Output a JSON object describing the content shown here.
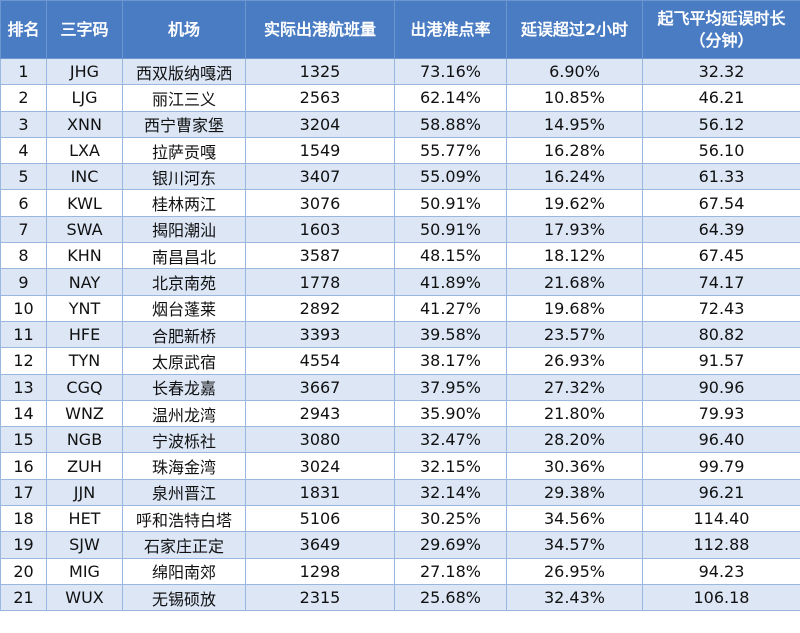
{
  "table": {
    "headers": {
      "rank": "排名",
      "code": "三字码",
      "airport": "机场",
      "flights": "实际出港航班量",
      "ontime": "出港准点率",
      "delay2h": "延误超过2小时",
      "avgdelay_line1": "起飞平均延误时长",
      "avgdelay_line2": "（分钟）"
    },
    "rows": [
      {
        "rank": "1",
        "code": "JHG",
        "airport": "西双版纳嘎洒",
        "flights": "1325",
        "ontime": "73.16%",
        "delay2h": "6.90%",
        "avgdelay": "32.32"
      },
      {
        "rank": "2",
        "code": "LJG",
        "airport": "丽江三义",
        "flights": "2563",
        "ontime": "62.14%",
        "delay2h": "10.85%",
        "avgdelay": "46.21"
      },
      {
        "rank": "3",
        "code": "XNN",
        "airport": "西宁曹家堡",
        "flights": "3204",
        "ontime": "58.88%",
        "delay2h": "14.95%",
        "avgdelay": "56.12"
      },
      {
        "rank": "4",
        "code": "LXA",
        "airport": "拉萨贡嘎",
        "flights": "1549",
        "ontime": "55.77%",
        "delay2h": "16.28%",
        "avgdelay": "56.10"
      },
      {
        "rank": "5",
        "code": "INC",
        "airport": "银川河东",
        "flights": "3407",
        "ontime": "55.09%",
        "delay2h": "16.24%",
        "avgdelay": "61.33"
      },
      {
        "rank": "6",
        "code": "KWL",
        "airport": "桂林两江",
        "flights": "3076",
        "ontime": "50.91%",
        "delay2h": "19.62%",
        "avgdelay": "67.54"
      },
      {
        "rank": "7",
        "code": "SWA",
        "airport": "揭阳潮汕",
        "flights": "1603",
        "ontime": "50.91%",
        "delay2h": "17.93%",
        "avgdelay": "64.39"
      },
      {
        "rank": "8",
        "code": "KHN",
        "airport": "南昌昌北",
        "flights": "3587",
        "ontime": "48.15%",
        "delay2h": "18.12%",
        "avgdelay": "67.45"
      },
      {
        "rank": "9",
        "code": "NAY",
        "airport": "北京南苑",
        "flights": "1778",
        "ontime": "41.89%",
        "delay2h": "21.68%",
        "avgdelay": "74.17"
      },
      {
        "rank": "10",
        "code": "YNT",
        "airport": "烟台蓬莱",
        "flights": "2892",
        "ontime": "41.27%",
        "delay2h": "19.68%",
        "avgdelay": "72.43"
      },
      {
        "rank": "11",
        "code": "HFE",
        "airport": "合肥新桥",
        "flights": "3393",
        "ontime": "39.58%",
        "delay2h": "23.57%",
        "avgdelay": "80.82"
      },
      {
        "rank": "12",
        "code": "TYN",
        "airport": "太原武宿",
        "flights": "4554",
        "ontime": "38.17%",
        "delay2h": "26.93%",
        "avgdelay": "91.57"
      },
      {
        "rank": "13",
        "code": "CGQ",
        "airport": "长春龙嘉",
        "flights": "3667",
        "ontime": "37.95%",
        "delay2h": "27.32%",
        "avgdelay": "90.96"
      },
      {
        "rank": "14",
        "code": "WNZ",
        "airport": "温州龙湾",
        "flights": "2943",
        "ontime": "35.90%",
        "delay2h": "21.80%",
        "avgdelay": "79.93"
      },
      {
        "rank": "15",
        "code": "NGB",
        "airport": "宁波栎社",
        "flights": "3080",
        "ontime": "32.47%",
        "delay2h": "28.20%",
        "avgdelay": "96.40"
      },
      {
        "rank": "16",
        "code": "ZUH",
        "airport": "珠海金湾",
        "flights": "3024",
        "ontime": "32.15%",
        "delay2h": "30.36%",
        "avgdelay": "99.79"
      },
      {
        "rank": "17",
        "code": "JJN",
        "airport": "泉州晋江",
        "flights": "1831",
        "ontime": "32.14%",
        "delay2h": "29.38%",
        "avgdelay": "96.21"
      },
      {
        "rank": "18",
        "code": "HET",
        "airport": "呼和浩特白塔",
        "flights": "5106",
        "ontime": "30.25%",
        "delay2h": "34.56%",
        "avgdelay": "114.40"
      },
      {
        "rank": "19",
        "code": "SJW",
        "airport": "石家庄正定",
        "flights": "3649",
        "ontime": "29.69%",
        "delay2h": "34.57%",
        "avgdelay": "112.88"
      },
      {
        "rank": "20",
        "code": "MIG",
        "airport": "绵阳南郊",
        "flights": "1298",
        "ontime": "27.18%",
        "delay2h": "26.95%",
        "avgdelay": "94.23"
      },
      {
        "rank": "21",
        "code": "WUX",
        "airport": "无锡硕放",
        "flights": "2315",
        "ontime": "25.68%",
        "delay2h": "32.43%",
        "avgdelay": "106.18"
      }
    ]
  },
  "colors": {
    "header_bg": "#4a7cc4",
    "row_stripe": "#dce6f5",
    "grid_line": "#9ab7e0"
  }
}
